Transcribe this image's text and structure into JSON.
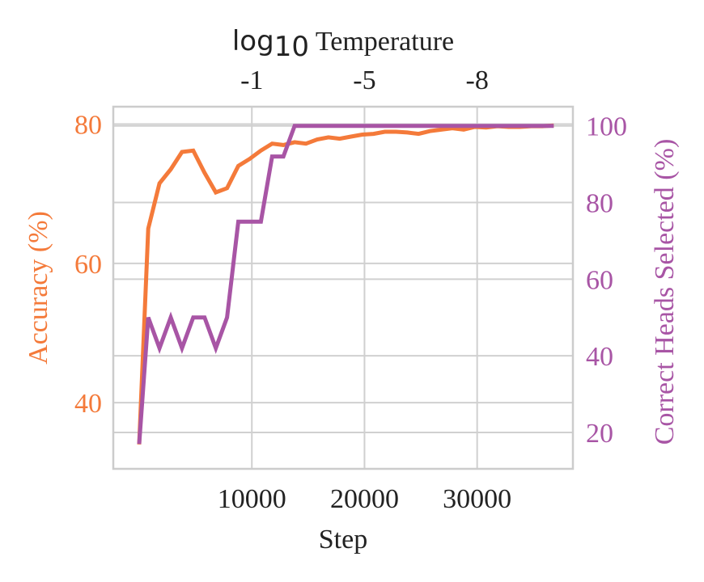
{
  "chart_data": {
    "type": "line",
    "xlabel": "Step",
    "ylabel_left": "Accuracy (%)",
    "ylabel_right": "Correct Heads Selected (%)",
    "top_axis_label_log": "log",
    "top_axis_label_sub": "10",
    "top_axis_label_rest": " Temperature",
    "x_ticks": [
      10000,
      20000,
      30000
    ],
    "x_tick_labels": [
      "10000",
      "20000",
      "30000"
    ],
    "top_ticks": [
      {
        "step": 10000,
        "label": "-1"
      },
      {
        "step": 20000,
        "label": "-5"
      },
      {
        "step": 30000,
        "label": "-8"
      }
    ],
    "left_ticks": [
      40,
      60,
      80
    ],
    "left_tick_labels": [
      "40",
      "60",
      "80"
    ],
    "right_ticks": [
      20,
      40,
      60,
      80,
      100
    ],
    "right_tick_labels": [
      "20",
      "40",
      "60",
      "80",
      "100"
    ],
    "xlim": [
      -2300,
      38500
    ],
    "ylim_left": [
      30.5,
      82.5
    ],
    "ylim_right": [
      10.5,
      105
    ],
    "grid": true,
    "colors": {
      "accuracy": "#f47a3a",
      "heads": "#a855a5",
      "grid": "#d0d0d0",
      "frame": "#cccccc",
      "text": "#222222"
    },
    "series": [
      {
        "axis": "left",
        "x": [
          0,
          800,
          1800,
          2800,
          3800,
          4800,
          5800,
          6800,
          7800,
          8800,
          9800,
          10800,
          11800,
          12800,
          13800,
          14800,
          15800,
          16800,
          17800,
          18800,
          19800,
          20800,
          21800,
          22800,
          23800,
          24800,
          25800,
          26800,
          27800,
          28800,
          29800,
          30800,
          31800,
          32800,
          33800,
          34800,
          35800,
          36800
        ],
        "y": [
          34,
          65,
          71.5,
          73.5,
          76,
          76.2,
          73,
          70.2,
          70.8,
          74,
          75,
          76.2,
          77.2,
          77,
          77.4,
          77.2,
          77.8,
          78.1,
          77.9,
          78.2,
          78.5,
          78.6,
          78.9,
          78.9,
          78.8,
          78.6,
          79,
          79.2,
          79.4,
          79.2,
          79.6,
          79.5,
          79.7,
          79.6,
          79.6,
          79.7,
          79.7,
          79.8
        ]
      },
      {
        "axis": "right",
        "x": [
          0,
          800,
          1800,
          2800,
          3800,
          4800,
          5800,
          6800,
          7800,
          8800,
          9800,
          10800,
          11800,
          12800,
          13800,
          14800,
          15800,
          16800,
          17800,
          18800,
          19800,
          20800,
          21800,
          22800,
          23800,
          24800,
          25800,
          26800,
          27800,
          28800,
          29800,
          30800,
          31800,
          32800,
          33800,
          34800,
          35800,
          36800
        ],
        "y": [
          17,
          50,
          42,
          50,
          42,
          50,
          50,
          42,
          50,
          75,
          75,
          75,
          92,
          92,
          100,
          100,
          100,
          100,
          100,
          100,
          100,
          100,
          100,
          100,
          100,
          100,
          100,
          100,
          100,
          100,
          100,
          100,
          100,
          100,
          100,
          100,
          100,
          100
        ]
      }
    ]
  }
}
